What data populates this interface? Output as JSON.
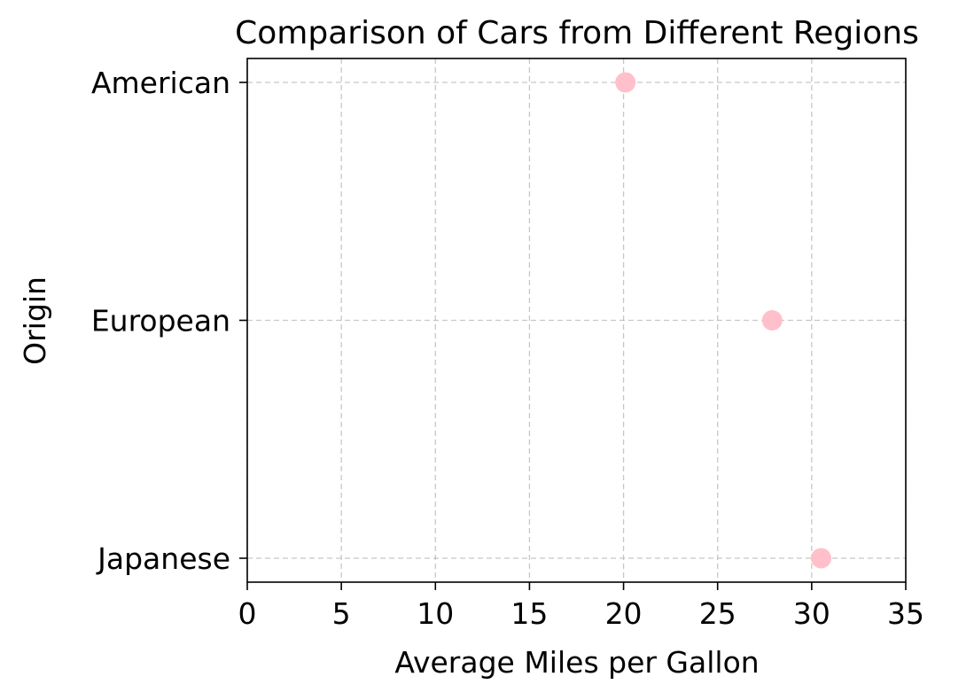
{
  "chart_data": {
    "type": "scatter",
    "title": "Comparison of Cars from Different Regions",
    "xlabel": "Average Miles per Gallon",
    "ylabel": "Origin",
    "xlim": [
      0,
      35
    ],
    "xticks": [
      0,
      5,
      10,
      15,
      20,
      25,
      30,
      35
    ],
    "categories": [
      "American",
      "European",
      "Japanese"
    ],
    "values": [
      20.1,
      27.9,
      30.5
    ],
    "grid": true,
    "marker_color": "#ffc0cb"
  }
}
